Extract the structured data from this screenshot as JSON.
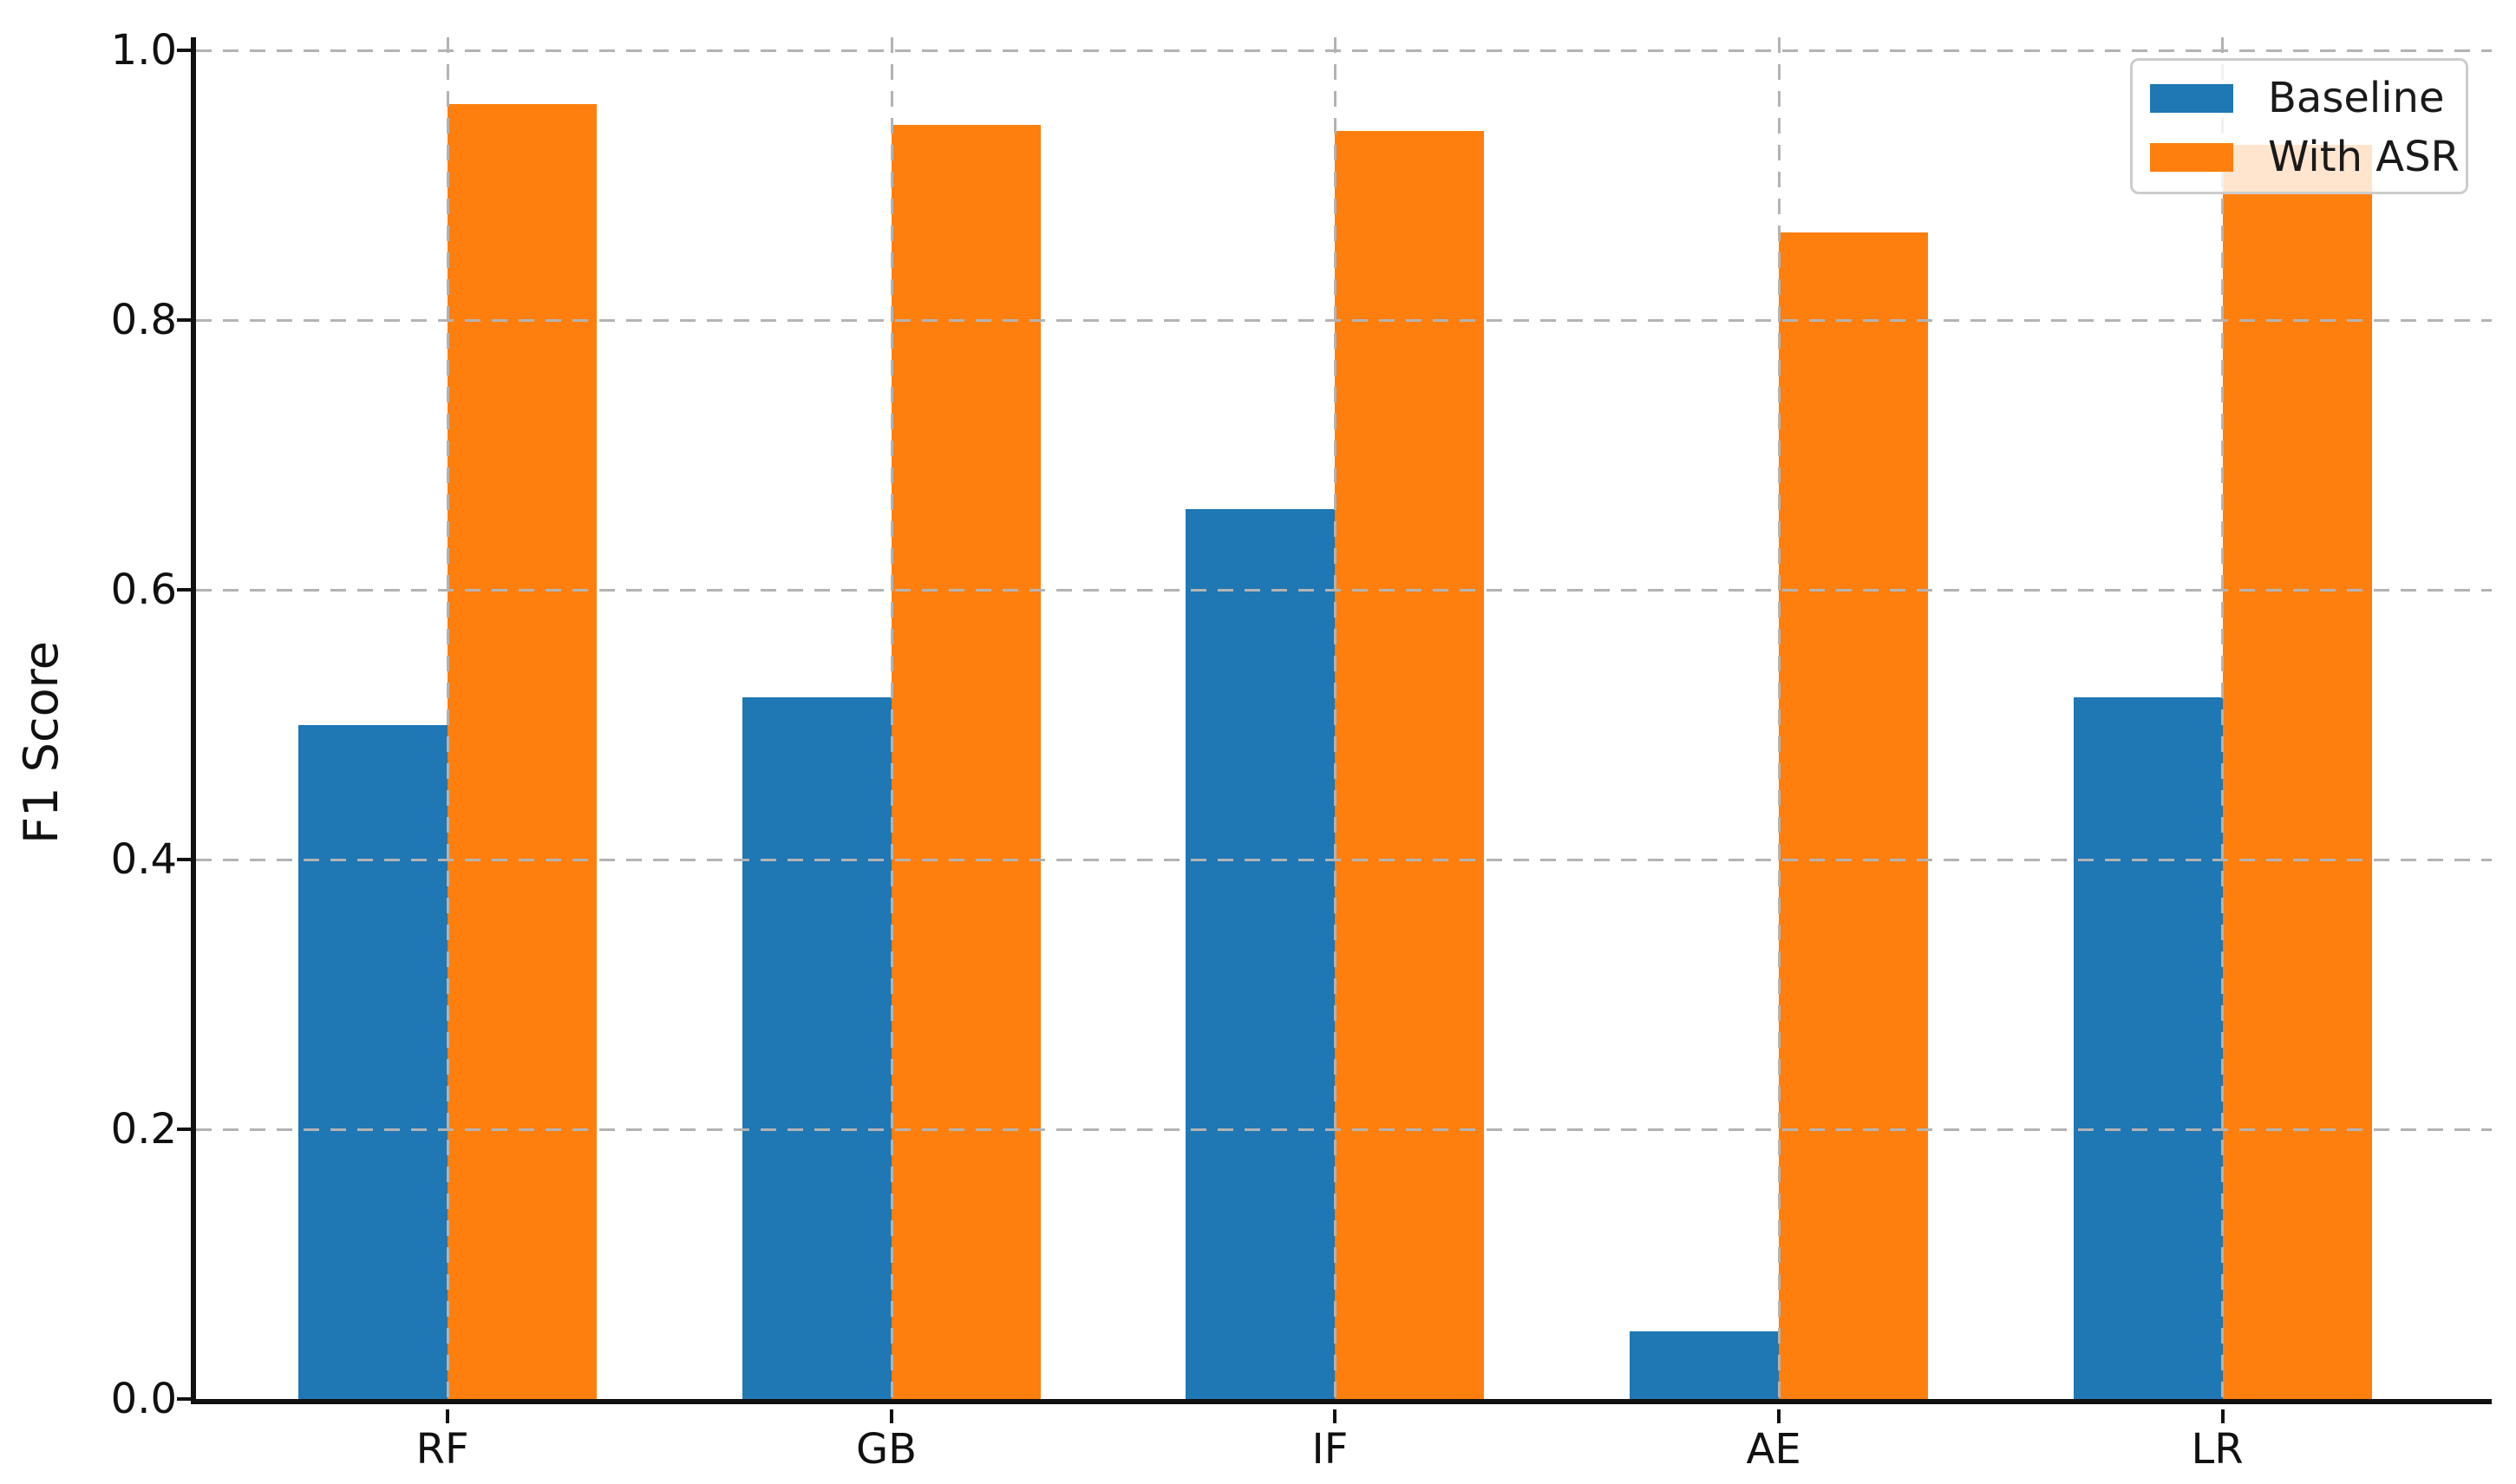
{
  "figure": {
    "background_color": "#ffffff",
    "text_color": "#111111",
    "grid_color": "#b3b3b3",
    "spine_color": "#111111",
    "legend": {
      "border_color": "#cccccc",
      "background": "rgba(255,255,255,0.8)",
      "position": "upper-right"
    }
  },
  "chart_data": {
    "type": "bar",
    "title": "",
    "xlabel": "",
    "ylabel": "F1 Score",
    "categories": [
      "RF",
      "GB",
      "IF",
      "AE",
      "LR"
    ],
    "series": [
      {
        "name": "Baseline",
        "color": "#1f77b4",
        "values": [
          0.5,
          0.52,
          0.66,
          0.05,
          0.52
        ]
      },
      {
        "name": "With ASR",
        "color": "#ff7f0e",
        "values": [
          0.96,
          0.945,
          0.94,
          0.865,
          0.93
        ]
      }
    ],
    "ylim": [
      0.0,
      1.01
    ],
    "yticks": [
      "0.0",
      "0.2",
      "0.4",
      "0.6",
      "0.8",
      "1.0"
    ],
    "ytick_values": [
      0.0,
      0.2,
      0.4,
      0.6,
      0.8,
      1.0
    ],
    "grid": "dashed-both-axes-above-bars",
    "legend_entries": [
      "Baseline",
      "With ASR"
    ],
    "bar_group_layout": "grouped-pairs-touching"
  }
}
